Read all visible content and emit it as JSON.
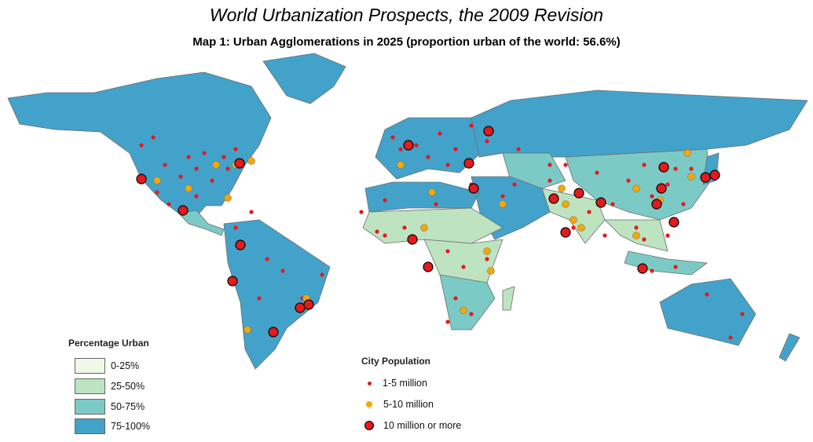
{
  "title": "World Urbanization Prospects, the 2009 Revision",
  "subtitle": "Map 1: Urban Agglomerations in 2025 (proportion urban of the world: 56.6%)",
  "legend_urban": {
    "title": "Percentage Urban",
    "items": [
      {
        "label": "0-25%",
        "color": "#f0f8e8"
      },
      {
        "label": "25-50%",
        "color": "#bde3c0"
      },
      {
        "label": "50-75%",
        "color": "#7ccac5"
      },
      {
        "label": "75-100%",
        "color": "#43a2ca"
      }
    ]
  },
  "legend_city": {
    "title": "City Population",
    "items": [
      {
        "label": "1-5 million",
        "color": "#e41a1c"
      },
      {
        "label": "5-10 million",
        "color": "#f5a800"
      },
      {
        "label": "10 million or more",
        "color": "#e41a1c"
      }
    ]
  },
  "colors": {
    "border": "#6e6e6e",
    "background": "#ffffff"
  }
}
